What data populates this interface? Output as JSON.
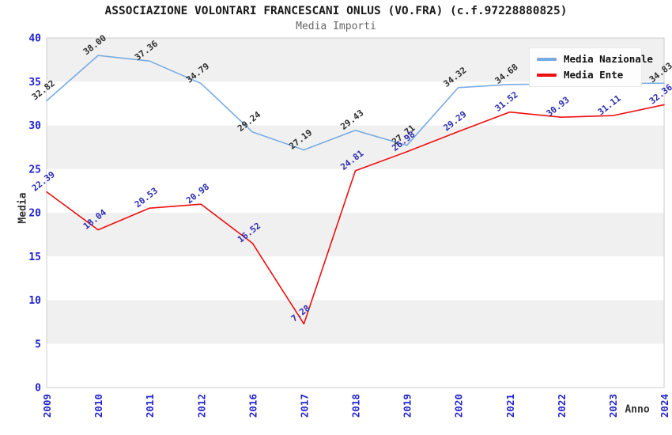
{
  "page": {
    "window_title": "ASSOCIAZIONE VOLONTARI FRANCESCANI ONLUS (VO.FRA) (c.f.97228880825)"
  },
  "chart_data": {
    "type": "line",
    "title": "ASSOCIAZIONE VOLONTARI FRANCESCANI ONLUS (VO.FRA) (c.f.97228880825)",
    "subtitle": "Media Importi",
    "xlabel": "Anno",
    "ylabel": "Media",
    "categories": [
      "2009",
      "2010",
      "2011",
      "2012",
      "2016",
      "2017",
      "2018",
      "2019",
      "2020",
      "2021",
      "2022",
      "2023",
      "2024"
    ],
    "ylim": [
      0,
      40
    ],
    "ytick_step": 5,
    "yticks": [
      0,
      5,
      10,
      15,
      20,
      25,
      30,
      35,
      40
    ],
    "grid": "alternating-horizontal-bands",
    "legend_position": "top-right",
    "series": [
      {
        "name": "Media Nazionale",
        "color": "#79abe2",
        "label_color": "#2e2e2e",
        "values": [
          32.82,
          38.0,
          37.36,
          34.79,
          29.24,
          27.19,
          29.43,
          27.71,
          34.32,
          34.68,
          34.74,
          34.79,
          34.83
        ],
        "labels": [
          "32.82",
          "38.00",
          "37.36",
          "34.79",
          "29.24",
          "27.19",
          "29.43",
          "27.71",
          "34.32",
          "34.68",
          "",
          "",
          "34.83"
        ],
        "labels_note": "2022 and 2023 point labels are hidden behind the legend box"
      },
      {
        "name": "Media Ente",
        "color": "#ee0f0f",
        "label_color": "#2b2bb0",
        "values": [
          22.39,
          18.04,
          20.53,
          20.98,
          16.52,
          7.28,
          24.81,
          26.98,
          29.29,
          31.52,
          30.93,
          31.11,
          32.36
        ],
        "labels": [
          "22.39",
          "18.04",
          "20.53",
          "20.98",
          "16.52",
          "7.28",
          "24.81",
          "26.98",
          "29.29",
          "31.52",
          "30.93",
          "31.11",
          "32.36"
        ],
        "labels_note": ""
      }
    ],
    "styles": {
      "band_color": "#f0f0f0",
      "band_alt_color": "#ffffff",
      "plot_border_color": "#cccccc",
      "tick_label_color": "#2222cc",
      "title_color": "#1a1a1a",
      "subtitle_color": "#666666",
      "axis_title_color": "#333333"
    }
  }
}
